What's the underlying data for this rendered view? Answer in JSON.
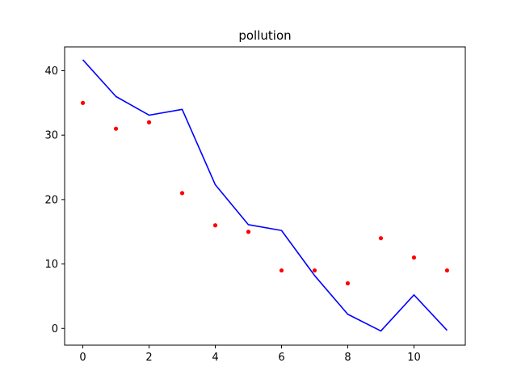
{
  "chart_data": {
    "type": "line",
    "title": "pollution",
    "xlabel": "",
    "ylabel": "",
    "xlim": [
      -0.55,
      11.55
    ],
    "ylim": [
      -2.6,
      43.7
    ],
    "x_ticks": [
      0,
      2,
      4,
      6,
      8,
      10
    ],
    "y_ticks": [
      0,
      10,
      20,
      30,
      40
    ],
    "grid": false,
    "x": [
      0,
      1,
      2,
      3,
      4,
      5,
      6,
      7,
      8,
      9,
      10,
      11
    ],
    "series": [
      {
        "kind": "line",
        "color": "#0000ff",
        "values": [
          41.7,
          36.0,
          33.1,
          34.0,
          22.3,
          16.1,
          15.2,
          8.2,
          2.2,
          -0.4,
          5.2,
          -0.3
        ]
      },
      {
        "kind": "scatter",
        "color": "#ff0000",
        "values": [
          35,
          31,
          32,
          21,
          16,
          15,
          9,
          9,
          7,
          14,
          11,
          9
        ]
      }
    ]
  }
}
